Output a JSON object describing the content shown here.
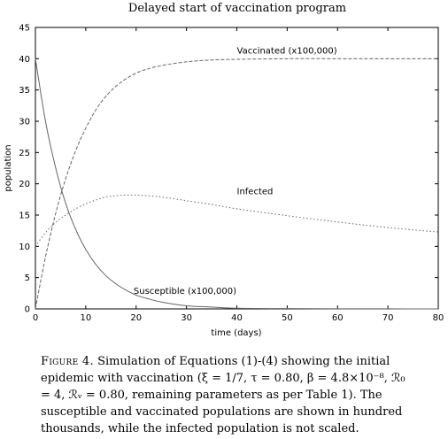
{
  "chart_data": {
    "type": "line",
    "title": "Delayed start of vaccination program",
    "xlabel": "time (days)",
    "ylabel": "population",
    "xlim": [
      0,
      80
    ],
    "ylim": [
      0,
      45
    ],
    "xticks": [
      "0",
      "10",
      "20",
      "30",
      "40",
      "50",
      "60",
      "70",
      "80"
    ],
    "yticks": [
      "0",
      "5",
      "10",
      "15",
      "20",
      "25",
      "30",
      "35",
      "40",
      "45"
    ],
    "grid": false,
    "legend": "none",
    "series": [
      {
        "name": "Vaccinated (x100,000)",
        "style": "dashed",
        "color": "#666666",
        "x": [
          0,
          2,
          4,
          6,
          8,
          10,
          12,
          14,
          16,
          18,
          20,
          22,
          25,
          30,
          35,
          40,
          50,
          60,
          70,
          80
        ],
        "y": [
          0,
          8.3,
          15.2,
          20.8,
          25.3,
          28.9,
          31.8,
          34.0,
          35.6,
          36.8,
          37.7,
          38.3,
          38.9,
          39.5,
          39.8,
          39.9,
          40.0,
          40.0,
          40.0,
          40.0
        ]
      },
      {
        "name": "Infected",
        "style": "dotted",
        "color": "#666666",
        "x": [
          0,
          2,
          4,
          6,
          8,
          10,
          12,
          14,
          16,
          18,
          20,
          22,
          25,
          30,
          35,
          40,
          50,
          60,
          70,
          80
        ],
        "y": [
          10,
          12.2,
          13.8,
          15.0,
          16.0,
          16.8,
          17.4,
          17.9,
          18.1,
          18.2,
          18.2,
          18.1,
          17.9,
          17.3,
          16.7,
          16.0,
          14.9,
          13.9,
          13.0,
          12.3
        ]
      },
      {
        "name": "Susceptible (x100,000)",
        "style": "solid",
        "color": "#666666",
        "x": [
          0,
          2,
          4,
          6,
          8,
          10,
          12,
          14,
          16,
          18,
          20,
          22,
          25,
          30,
          35,
          40,
          50,
          60,
          70,
          80
        ],
        "y": [
          40,
          30.0,
          22.6,
          16.9,
          12.7,
          9.5,
          7.1,
          5.3,
          4.0,
          3.0,
          2.2,
          1.7,
          1.1,
          0.5,
          0.3,
          0.1,
          0.05,
          0.02,
          0.01,
          0.0
        ]
      }
    ],
    "annotations": [
      {
        "text": "Vaccinated (x100,000)",
        "x": 40,
        "y": 40.8
      },
      {
        "text": "Infected",
        "x": 40,
        "y": 18.3
      },
      {
        "text": "Susceptible (x100,000)",
        "x": 19.5,
        "y": 2.4
      }
    ]
  },
  "caption": {
    "label": "Figure 4.",
    "text": "Simulation of Equations (1)-(4) showing the initial epidemic with vaccination (ξ = 1/7, τ = 0.80, β = 4.8×10⁻⁸, ℛ₀ = 4, ℛᵥ = 0.80, remaining parameters as per Table 1). The susceptible and vaccinated populations are shown in hundred thousands, while the infected population is not scaled."
  }
}
